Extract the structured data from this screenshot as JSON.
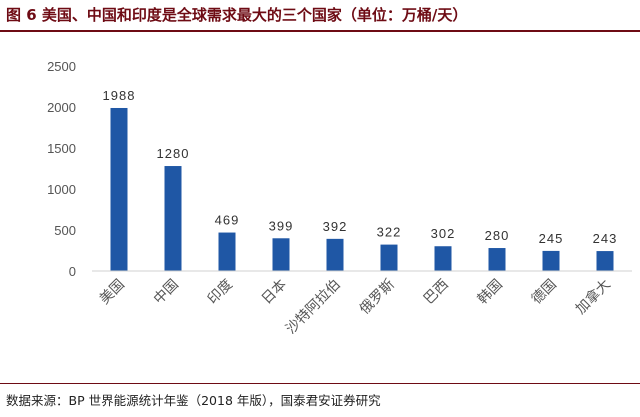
{
  "figure": {
    "title": "图 6 美国、中国和印度是全球需求最大的三个国家（单位：万桶/天）",
    "source": "数据来源：BP 世界能源统计年鉴（2018 年版），国泰君安证券研究"
  },
  "colors": {
    "bar": "#1f57a5",
    "title": "#6e0b14",
    "axis": "#d0d0d0"
  },
  "chart_data": {
    "type": "bar",
    "title": "",
    "xlabel": "",
    "ylabel": "",
    "categories": [
      "美国",
      "中国",
      "印度",
      "日本",
      "沙特阿拉伯",
      "俄罗斯",
      "巴西",
      "韩国",
      "德国",
      "加拿大"
    ],
    "values": [
      1988,
      1280,
      469,
      399,
      392,
      322,
      302,
      280,
      245,
      243
    ],
    "data_labels": [
      "1988",
      "1280",
      "469",
      "399",
      "392",
      "322",
      "302",
      "280",
      "245",
      "243"
    ],
    "y_ticks": [
      0,
      500,
      1000,
      1500,
      2000,
      2500
    ],
    "ylim": [
      0,
      2500
    ],
    "grid": false,
    "legend": "none"
  }
}
